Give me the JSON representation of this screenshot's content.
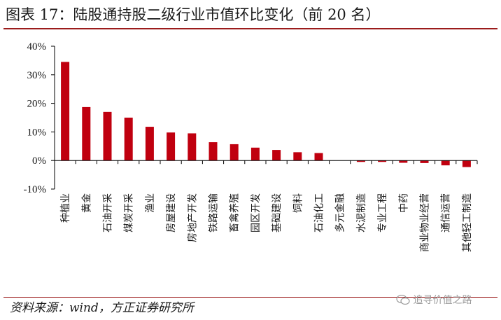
{
  "title": "图表 17：陆股通持股二级行业市值环比变化（前 20 名）",
  "source": "资料来源：wind，方正证券研究所",
  "watermark": "追寻价值之路",
  "colors": {
    "bar": "#c0000f",
    "rule": "#9b1c1c",
    "axis": "#000000"
  },
  "chart_data": {
    "type": "bar",
    "title": "",
    "xlabel": "",
    "ylabel": "",
    "ylim": [
      -0.1,
      0.4
    ],
    "ytick_values": [
      -0.1,
      0,
      0.1,
      0.2,
      0.3,
      0.4
    ],
    "ytick_labels": [
      "-10%",
      "0%",
      "10%",
      "20%",
      "30%",
      "40%"
    ],
    "categories": [
      "种植业",
      "黄金",
      "石油开采",
      "煤炭开采",
      "渔业",
      "房屋建设",
      "房地产开发",
      "铁路运输",
      "畜禽养殖",
      "园区开发",
      "基础建设",
      "饲料",
      "石油化工",
      "多元金融",
      "水泥制造",
      "专业工程",
      "中药",
      "商业物业经营",
      "通信运营",
      "其他轻工制造"
    ],
    "values": [
      0.345,
      0.187,
      0.17,
      0.15,
      0.118,
      0.098,
      0.095,
      0.064,
      0.057,
      0.045,
      0.037,
      0.029,
      0.026,
      0.0,
      -0.005,
      -0.005,
      -0.008,
      -0.009,
      -0.017,
      -0.023
    ],
    "grid": false,
    "legend": "none"
  }
}
